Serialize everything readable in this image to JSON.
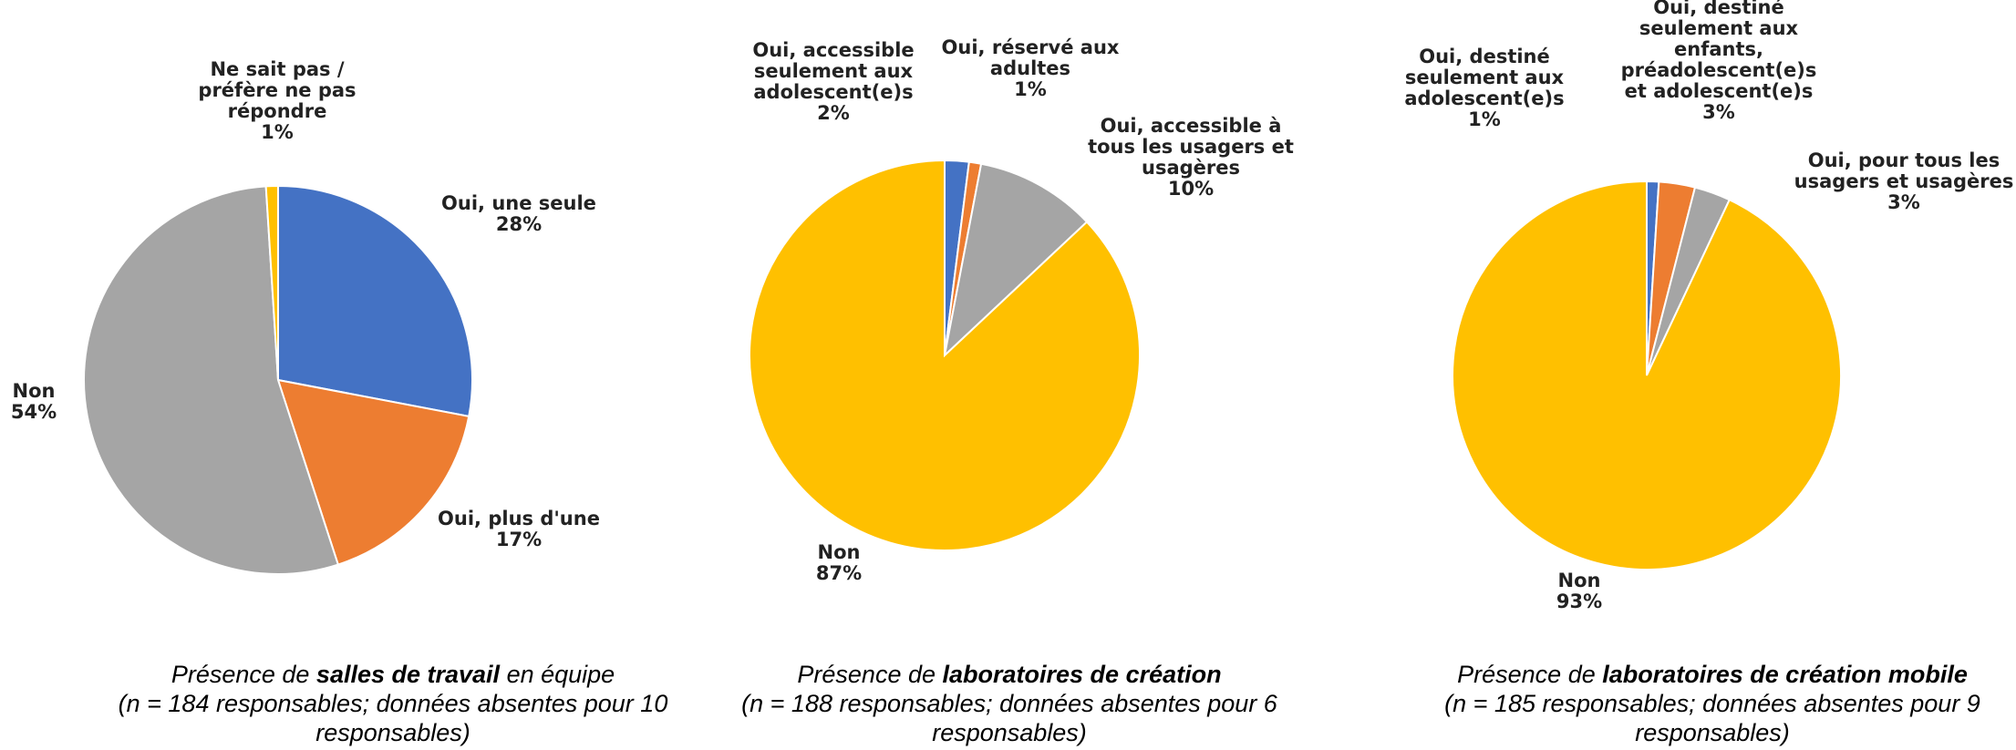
{
  "chart_data": [
    {
      "type": "pie",
      "title_parts": {
        "prefix": "Présence de ",
        "bold": "salles de travail",
        "suffix": " en équipe"
      },
      "subtitle": "(n = 184 responsables; données absentes pour 10 responsables)",
      "start_angle_deg": 0,
      "direction": "clockwise",
      "slices": [
        {
          "label": [
            "Oui, une seule"
          ],
          "value_text": "28%",
          "value": 28,
          "color": "#4472C4"
        },
        {
          "label": [
            "Oui, plus d'une"
          ],
          "value_text": "17%",
          "value": 17,
          "color": "#ED7D31"
        },
        {
          "label": [
            "Non"
          ],
          "value_text": "54%",
          "value": 54,
          "color": "#A5A5A5"
        },
        {
          "label": [
            "Ne sait pas /",
            "préfère ne pas",
            "répondre"
          ],
          "value_text": "1%",
          "value": 1,
          "color": "#FFC000"
        }
      ]
    },
    {
      "type": "pie",
      "title_parts": {
        "prefix": "Présence de ",
        "bold": "laboratoires de création",
        "suffix": ""
      },
      "subtitle": "(n = 188 responsables; données absentes pour 6 responsables)",
      "start_angle_deg": 0,
      "direction": "clockwise",
      "slices": [
        {
          "label": [
            "Oui, accessible",
            "seulement aux",
            "adolescent(e)s"
          ],
          "value_text": "2%",
          "value": 2,
          "color": "#4472C4"
        },
        {
          "label": [
            "Oui, réservé aux",
            "adultes"
          ],
          "value_text": "1%",
          "value": 1,
          "color": "#ED7D31"
        },
        {
          "label": [
            "Oui, accessible à",
            "tous les usagers et",
            "usagères"
          ],
          "value_text": "10%",
          "value": 10,
          "color": "#A5A5A5"
        },
        {
          "label": [
            "Non"
          ],
          "value_text": "87%",
          "value": 87,
          "color": "#FFC000"
        }
      ]
    },
    {
      "type": "pie",
      "title_parts": {
        "prefix": "Présence de ",
        "bold": "laboratoires de création mobile",
        "suffix": ""
      },
      "subtitle": "(n = 185 responsables; données absentes pour 9 responsables)",
      "start_angle_deg": 0,
      "direction": "clockwise",
      "slices": [
        {
          "label": [
            "Oui, destiné",
            "seulement aux",
            "adolescent(e)s"
          ],
          "value_text": "1%",
          "value": 1,
          "color": "#4472C4"
        },
        {
          "label": [
            "Oui, destiné",
            "seulement aux",
            "enfants,",
            "préadolescent(e)s",
            "et adolescent(e)s"
          ],
          "value_text": "3%",
          "value": 3,
          "color": "#ED7D31"
        },
        {
          "label": [
            "Oui, pour tous les",
            "usagers et usagères"
          ],
          "value_text": "3%",
          "value": 3,
          "color": "#A5A5A5"
        },
        {
          "label": [
            "Non"
          ],
          "value_text": "93%",
          "value": 93,
          "color": "#FFC000"
        }
      ]
    }
  ]
}
